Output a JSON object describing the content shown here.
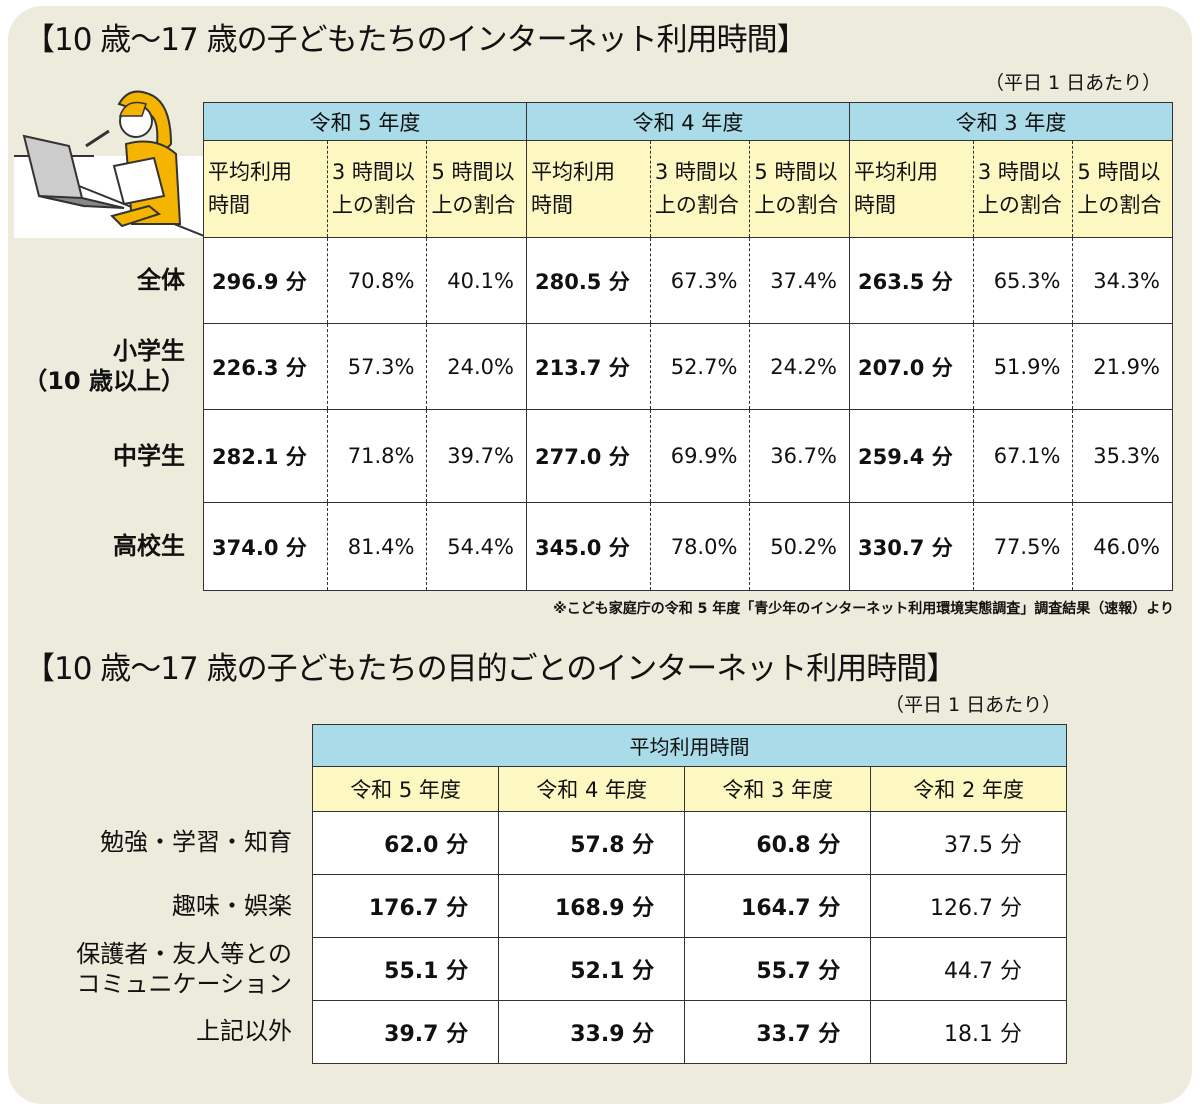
{
  "chart_data": [
    {
      "type": "table",
      "title": "【10 歳～17 歳の子どもたちのインターネット利用時間】",
      "note": "（平日 1 日あたり）",
      "groups": [
        "令和 5 年度",
        "令和 4 年度",
        "令和 3 年度"
      ],
      "subheaders": [
        [
          "平均利用",
          "時間"
        ],
        [
          "3 時間以",
          "上の割合"
        ],
        [
          "5 時間以",
          "上の割合"
        ]
      ],
      "rows": [
        {
          "label": [
            "全体"
          ],
          "values": [
            [
              "296.9 分",
              "70.8%",
              "40.1%"
            ],
            [
              "280.5 分",
              "67.3%",
              "37.4%"
            ],
            [
              "263.5 分",
              "65.3%",
              "34.3%"
            ]
          ]
        },
        {
          "label": [
            "小学生",
            "（10 歳以上）"
          ],
          "values": [
            [
              "226.3 分",
              "57.3%",
              "24.0%"
            ],
            [
              "213.7 分",
              "52.7%",
              "24.2%"
            ],
            [
              "207.0 分",
              "51.9%",
              "21.9%"
            ]
          ]
        },
        {
          "label": [
            "中学生"
          ],
          "values": [
            [
              "282.1 分",
              "71.8%",
              "39.7%"
            ],
            [
              "277.0 分",
              "69.9%",
              "36.7%"
            ],
            [
              "259.4 分",
              "67.1%",
              "35.3%"
            ]
          ]
        },
        {
          "label": [
            "高校生"
          ],
          "values": [
            [
              "374.0 分",
              "81.4%",
              "54.4%"
            ],
            [
              "345.0 分",
              "78.0%",
              "50.2%"
            ],
            [
              "330.7 分",
              "77.5%",
              "46.0%"
            ]
          ]
        }
      ],
      "source": "※こども家庭庁の令和 5 年度「青少年のインターネット利用環境実態調査」調査結果（速報）より"
    },
    {
      "type": "table",
      "title": "【10 歳～17 歳の子どもたちの目的ごとのインターネット利用時間】",
      "note": "（平日 1 日あたり）",
      "header": "平均利用時間",
      "columns": [
        "令和 5 年度",
        "令和 4 年度",
        "令和 3 年度",
        "令和 2 年度"
      ],
      "rows": [
        {
          "label": [
            "勉強・学習・知育"
          ],
          "values": [
            "62.0 分",
            "57.8 分",
            "60.8 分",
            "37.5 分"
          ]
        },
        {
          "label": [
            "趣味・娯楽"
          ],
          "values": [
            "176.7 分",
            "168.9 分",
            "164.7 分",
            "126.7 分"
          ]
        },
        {
          "label": [
            "保護者・友人等との",
            "コミュニケーション"
          ],
          "values": [
            "55.1 分",
            "52.1 分",
            "55.7 分",
            "44.7 分"
          ]
        },
        {
          "label": [
            "上記以外"
          ],
          "values": [
            "39.7 分",
            "33.9 分",
            "33.7 分",
            "18.1 分"
          ]
        }
      ]
    }
  ]
}
